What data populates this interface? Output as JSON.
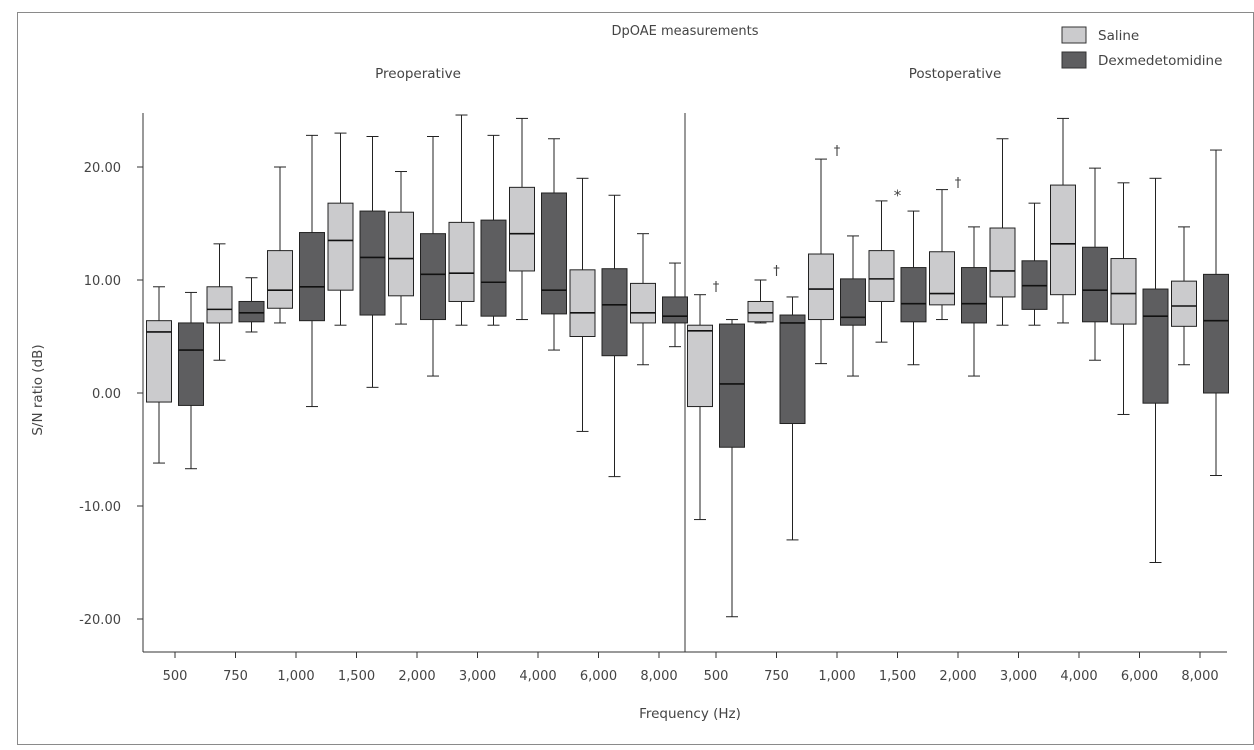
{
  "chart_data": {
    "type": "box",
    "title": "DpOAE measurements",
    "panels": [
      "Preoperative",
      "Postoperative"
    ],
    "xlabel": "Frequency (Hz)",
    "ylabel": "S/N ratio (dB)",
    "ylim": [
      -24,
      25
    ],
    "yticks": [
      20,
      10,
      0,
      -10,
      -20
    ],
    "ytick_labels": [
      "20.00",
      "10.00",
      "0.00",
      "-10.00",
      "-20.00"
    ],
    "categories": [
      "500",
      "750",
      "1,000",
      "1,500",
      "2,000",
      "3,000",
      "4,000",
      "6,000",
      "8,000"
    ],
    "legend_position": "top-right",
    "series": [
      {
        "name": "Saline",
        "color": "#cbcbcd",
        "preoperative": [
          {
            "min": -6.2,
            "q1": -0.8,
            "median": 5.4,
            "q3": 6.4,
            "max": 9.4
          },
          {
            "min": 2.9,
            "q1": 6.2,
            "median": 7.4,
            "q3": 9.4,
            "max": 13.2
          },
          {
            "min": 6.2,
            "q1": 7.5,
            "median": 9.1,
            "q3": 12.6,
            "max": 20.0
          },
          {
            "min": 6.0,
            "q1": 9.1,
            "median": 13.5,
            "q3": 16.8,
            "max": 23.0
          },
          {
            "min": 6.1,
            "q1": 8.6,
            "median": 11.9,
            "q3": 16.0,
            "max": 19.6
          },
          {
            "min": 6.0,
            "q1": 8.1,
            "median": 10.6,
            "q3": 15.1,
            "max": 24.6
          },
          {
            "min": 6.5,
            "q1": 10.8,
            "median": 14.1,
            "q3": 18.2,
            "max": 24.3
          },
          {
            "min": -3.4,
            "q1": 5.0,
            "median": 7.1,
            "q3": 10.9,
            "max": 19.0
          },
          {
            "min": 2.5,
            "q1": 6.2,
            "median": 7.1,
            "q3": 9.7,
            "max": 14.1
          }
        ],
        "postoperative": [
          {
            "min": -11.2,
            "q1": -1.2,
            "median": 5.5,
            "q3": 6.0,
            "max": 8.7
          },
          {
            "min": 6.2,
            "q1": 6.3,
            "median": 7.1,
            "q3": 8.1,
            "max": 10.0
          },
          {
            "min": 2.6,
            "q1": 6.5,
            "median": 9.2,
            "q3": 12.3,
            "max": 20.7
          },
          {
            "min": 4.5,
            "q1": 8.1,
            "median": 10.1,
            "q3": 12.6,
            "max": 17.0
          },
          {
            "min": 6.5,
            "q1": 7.8,
            "median": 8.8,
            "q3": 12.5,
            "max": 18.0
          },
          {
            "min": 6.0,
            "q1": 8.5,
            "median": 10.8,
            "q3": 14.6,
            "max": 22.5
          },
          {
            "min": 6.2,
            "q1": 8.7,
            "median": 13.2,
            "q3": 18.4,
            "max": 24.3
          },
          {
            "min": -1.9,
            "q1": 6.1,
            "median": 8.8,
            "q3": 11.9,
            "max": 18.6
          },
          {
            "min": 2.5,
            "q1": 5.9,
            "median": 7.7,
            "q3": 9.9,
            "max": 14.7
          }
        ]
      },
      {
        "name": "Dexmedetomidine",
        "color": "#5e5e60",
        "preoperative": [
          {
            "min": -6.7,
            "q1": -1.1,
            "median": 3.8,
            "q3": 6.2,
            "max": 8.9
          },
          {
            "min": 5.4,
            "q1": 6.3,
            "median": 7.1,
            "q3": 8.1,
            "max": 10.2
          },
          {
            "min": -1.2,
            "q1": 6.4,
            "median": 9.4,
            "q3": 14.2,
            "max": 22.8
          },
          {
            "min": 0.5,
            "q1": 6.9,
            "median": 12.0,
            "q3": 16.1,
            "max": 22.7
          },
          {
            "min": 1.5,
            "q1": 6.5,
            "median": 10.5,
            "q3": 14.1,
            "max": 22.7
          },
          {
            "min": 6.0,
            "q1": 6.8,
            "median": 9.8,
            "q3": 15.3,
            "max": 22.8
          },
          {
            "min": 3.8,
            "q1": 7.0,
            "median": 9.1,
            "q3": 17.7,
            "max": 22.5
          },
          {
            "min": -7.4,
            "q1": 3.3,
            "median": 7.8,
            "q3": 11.0,
            "max": 17.5
          },
          {
            "min": 4.1,
            "q1": 6.2,
            "median": 6.8,
            "q3": 8.5,
            "max": 11.5
          }
        ],
        "postoperative": [
          {
            "min": -19.8,
            "q1": -4.8,
            "median": 0.8,
            "q3": 6.1,
            "max": 6.5
          },
          {
            "min": -13.0,
            "q1": -2.7,
            "median": 6.2,
            "q3": 6.9,
            "max": 8.5
          },
          {
            "min": 1.5,
            "q1": 6.0,
            "median": 6.7,
            "q3": 10.1,
            "max": 13.9
          },
          {
            "min": 2.5,
            "q1": 6.3,
            "median": 7.9,
            "q3": 11.1,
            "max": 16.1
          },
          {
            "min": 1.5,
            "q1": 6.2,
            "median": 7.9,
            "q3": 11.1,
            "max": 14.7
          },
          {
            "min": 6.0,
            "q1": 7.4,
            "median": 9.5,
            "q3": 11.7,
            "max": 16.8
          },
          {
            "min": 2.9,
            "q1": 6.3,
            "median": 9.1,
            "q3": 12.9,
            "max": 19.9
          },
          {
            "min": -15.0,
            "q1": -0.9,
            "median": 6.8,
            "q3": 9.2,
            "max": 19.0
          },
          {
            "min": -7.3,
            "q1": 0.0,
            "median": 6.4,
            "q3": 10.5,
            "max": 21.5
          }
        ]
      }
    ],
    "annotations": [
      {
        "panel": "postoperative",
        "category": "500",
        "symbol": "†",
        "y": 9.4
      },
      {
        "panel": "postoperative",
        "category": "750",
        "symbol": "†",
        "y": 10.8
      },
      {
        "panel": "postoperative",
        "category": "1,000",
        "symbol": "†",
        "y": 21.4
      },
      {
        "panel": "postoperative",
        "category": "1,500",
        "symbol": "*",
        "y": 17.4
      },
      {
        "panel": "postoperative",
        "category": "2,000",
        "symbol": "†",
        "y": 18.6
      }
    ]
  }
}
